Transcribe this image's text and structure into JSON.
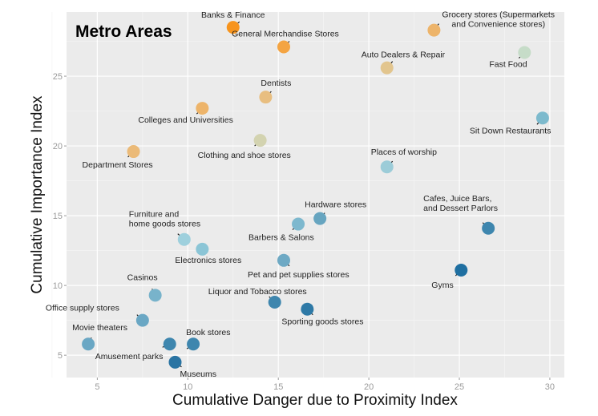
{
  "chart_data": {
    "type": "scatter",
    "title": "Metro Areas",
    "xlabel": "Cumulative Danger due to Proximity Index",
    "ylabel": "Cumulative Importance Index",
    "xlim": [
      3.3,
      30.8
    ],
    "ylim": [
      3.4,
      29.6
    ],
    "xticks": [
      5,
      10,
      15,
      20,
      25,
      30
    ],
    "yticks": [
      5,
      10,
      15,
      20,
      25
    ],
    "grid": true,
    "legend": "none",
    "color_encoding": "gradient from dark blue (low importance) to orange (high importance)",
    "points": [
      {
        "label": "Banks & Finance",
        "x": 12.5,
        "y": 28.5,
        "color": "#F7941D"
      },
      {
        "label": "General Merchandise Stores",
        "x": 15.3,
        "y": 27.1,
        "color": "#F4A442"
      },
      {
        "label": "Grocery stores (Supermarkets\nand Convenience stores)",
        "x": 23.6,
        "y": 28.3,
        "color": "#EDB46A"
      },
      {
        "label": "Auto Dealers & Repair",
        "x": 21.0,
        "y": 25.6,
        "color": "#E2C58E"
      },
      {
        "label": "Fast Food",
        "x": 28.6,
        "y": 26.7,
        "color": "#C6DCC8"
      },
      {
        "label": "Dentists",
        "x": 14.3,
        "y": 23.5,
        "color": "#E8BE80"
      },
      {
        "label": "Colleges and Universities",
        "x": 10.8,
        "y": 22.7,
        "color": "#EDB46A"
      },
      {
        "label": "Sit Down Restaurants",
        "x": 29.6,
        "y": 22.0,
        "color": "#7DBACD"
      },
      {
        "label": "Clothing and shoe stores",
        "x": 14.0,
        "y": 20.4,
        "color": "#D3D3B0"
      },
      {
        "label": "Department Stores",
        "x": 7.0,
        "y": 19.6,
        "color": "#EBBA78"
      },
      {
        "label": "Places of worship",
        "x": 21.0,
        "y": 18.5,
        "color": "#9CCCD8"
      },
      {
        "label": "Hardware stores",
        "x": 17.3,
        "y": 14.8,
        "color": "#67A5C0"
      },
      {
        "label": "Barbers & Salons",
        "x": 16.1,
        "y": 14.4,
        "color": "#7DB8CE"
      },
      {
        "label": "Cafes, Juice Bars,\nand Dessert Parlors",
        "x": 26.6,
        "y": 14.1,
        "color": "#3E86AE"
      },
      {
        "label": "Furniture and\nhome goods stores",
        "x": 9.8,
        "y": 13.3,
        "color": "#9ED0DD"
      },
      {
        "label": "Electronics stores",
        "x": 10.8,
        "y": 12.6,
        "color": "#8BC5D6"
      },
      {
        "label": "Pet and pet supplies stores",
        "x": 15.3,
        "y": 11.8,
        "color": "#6EA9C4"
      },
      {
        "label": "Gyms",
        "x": 25.1,
        "y": 11.1,
        "color": "#1F6FA1"
      },
      {
        "label": "Casinos",
        "x": 8.2,
        "y": 9.3,
        "color": "#78B3CB"
      },
      {
        "label": "Liquor and Tobacco stores",
        "x": 14.8,
        "y": 8.8,
        "color": "#3E86AE"
      },
      {
        "label": "Sporting goods stores",
        "x": 16.6,
        "y": 8.3,
        "color": "#2E79A6"
      },
      {
        "label": "Office supply stores",
        "x": 7.5,
        "y": 7.5,
        "color": "#6AA7C4"
      },
      {
        "label": "Movie theaters",
        "x": 4.5,
        "y": 5.8,
        "color": "#6AA7C4"
      },
      {
        "label": "Amusement parks",
        "x": 9.0,
        "y": 5.8,
        "color": "#3E86AE"
      },
      {
        "label": "Book stores",
        "x": 10.3,
        "y": 5.8,
        "color": "#3E86AE"
      },
      {
        "label": "Museums",
        "x": 9.3,
        "y": 4.5,
        "color": "#2A74A3"
      }
    ]
  }
}
